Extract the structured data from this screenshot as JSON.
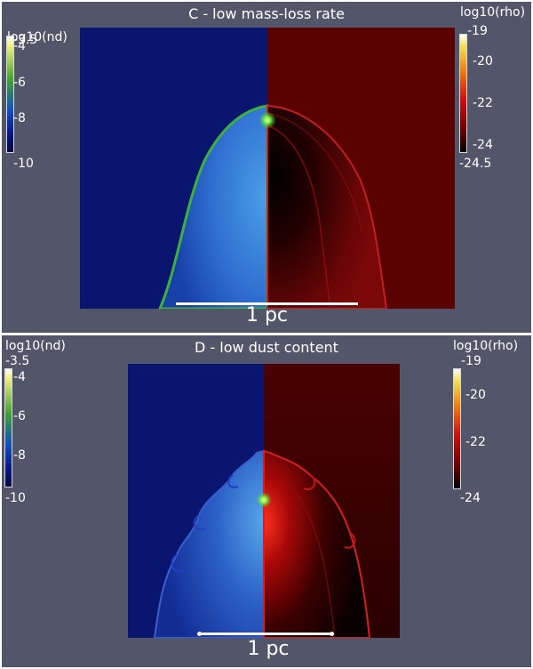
{
  "panels": [
    {
      "title": "C - low mass-loss rate",
      "left_label": "log10(nd)",
      "left_ticks": [
        "-3.5",
        "-4",
        "-6",
        "-8",
        "-10"
      ],
      "right_label": "log10(rho)",
      "right_ticks": [
        "-19",
        "-20",
        "-22",
        "-24",
        "-24.5"
      ],
      "scale": "1 pc"
    },
    {
      "title": "D - low dust content",
      "left_label": "log10(nd)",
      "left_ticks": [
        "-3.5",
        "-4",
        "-6",
        "-8",
        "-10"
      ],
      "right_label": "log10(rho)",
      "right_ticks": [
        "-19",
        "-20",
        "-22",
        "-24"
      ],
      "scale": "1 pc"
    }
  ],
  "colors": {
    "panel_bg": "#535668",
    "left_field": "#0a1570",
    "right_field": "#5a0202",
    "scalebar": "#ffffff"
  }
}
